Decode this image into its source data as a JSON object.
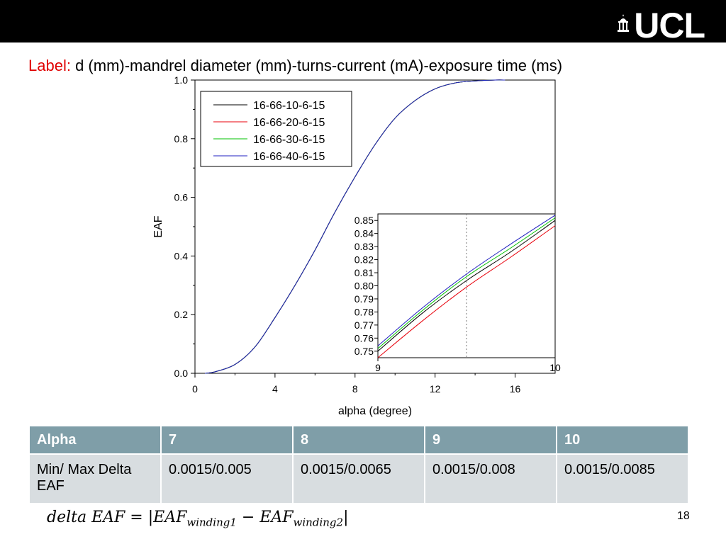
{
  "header": {
    "logo_text": "UCL"
  },
  "caption": {
    "label": "Label:",
    "text": "d (mm)-mandrel diameter (mm)-turns-current (mA)-exposure time (ms)"
  },
  "chart_data": [
    {
      "type": "line",
      "xlabel": "alpha (degree)",
      "ylabel": "EAF",
      "xlim": [
        0,
        18
      ],
      "ylim": [
        0,
        1
      ],
      "xticks": [
        0,
        4,
        8,
        12,
        16
      ],
      "yticks": [
        0.0,
        0.2,
        0.4,
        0.6,
        0.8,
        1.0
      ],
      "ytick_labels": [
        "0.0",
        "0.2",
        "0.4",
        "0.6",
        "0.8",
        "1.0"
      ],
      "legend_position": "top-left",
      "grid": false,
      "x": [
        0.5,
        1,
        2,
        3,
        4,
        5,
        6,
        7,
        8,
        9,
        10,
        11,
        12,
        13,
        14,
        15,
        15.5
      ],
      "series": [
        {
          "name": "16-66-10-6-15",
          "color": "#000000",
          "values": [
            0.0,
            0.005,
            0.03,
            0.09,
            0.19,
            0.3,
            0.42,
            0.55,
            0.67,
            0.78,
            0.87,
            0.93,
            0.97,
            0.99,
            0.997,
            1.0,
            1.0
          ]
        },
        {
          "name": "16-66-20-6-15",
          "color": "#e8000b",
          "values": [
            0.0,
            0.005,
            0.03,
            0.09,
            0.19,
            0.3,
            0.42,
            0.55,
            0.67,
            0.78,
            0.87,
            0.93,
            0.97,
            0.99,
            0.997,
            1.0,
            1.0
          ]
        },
        {
          "name": "16-66-30-6-15",
          "color": "#00c000",
          "values": [
            0.0,
            0.005,
            0.03,
            0.09,
            0.19,
            0.3,
            0.42,
            0.55,
            0.67,
            0.78,
            0.87,
            0.93,
            0.97,
            0.99,
            0.997,
            1.0,
            1.0
          ]
        },
        {
          "name": "16-66-40-6-15",
          "color": "#2020c0",
          "values": [
            0.0,
            0.005,
            0.03,
            0.09,
            0.19,
            0.3,
            0.42,
            0.55,
            0.67,
            0.78,
            0.87,
            0.93,
            0.97,
            0.99,
            0.997,
            1.0,
            1.0
          ]
        }
      ]
    },
    {
      "type": "line",
      "xlim": [
        9,
        10
      ],
      "ylim": [
        0.745,
        0.855
      ],
      "xticks": [
        9,
        10
      ],
      "yticks": [
        0.75,
        0.76,
        0.77,
        0.78,
        0.79,
        0.8,
        0.81,
        0.82,
        0.83,
        0.84,
        0.85
      ],
      "ytick_labels": [
        "0.75",
        "0.76",
        "0.77",
        "0.78",
        "0.79",
        "0.80",
        "0.81",
        "0.82",
        "0.83",
        "0.84",
        "0.85"
      ],
      "reference_line_x": 9.5,
      "x": [
        9,
        9.25,
        9.5,
        9.75,
        10
      ],
      "series": [
        {
          "name": "16-66-10-6-15",
          "color": "#000000",
          "values": [
            0.75,
            0.779,
            0.804,
            0.826,
            0.85
          ]
        },
        {
          "name": "16-66-20-6-15",
          "color": "#e8000b",
          "values": [
            0.745,
            0.773,
            0.799,
            0.822,
            0.846
          ]
        },
        {
          "name": "16-66-30-6-15",
          "color": "#00c000",
          "values": [
            0.752,
            0.781,
            0.807,
            0.829,
            0.852
          ]
        },
        {
          "name": "16-66-40-6-15",
          "color": "#2020c0",
          "values": [
            0.754,
            0.783,
            0.809,
            0.832,
            0.854
          ]
        }
      ]
    }
  ],
  "table": {
    "headers": [
      "Alpha",
      "7",
      "8",
      "9",
      "10"
    ],
    "row": [
      "Min/ Max Delta EAF",
      "0.0015/0.005",
      "0.0015/0.0065",
      "0.0015/0.008",
      "0.0015/0.0085"
    ]
  },
  "formula": {
    "lhs": "delta EAF =",
    "term1": "EAF",
    "sub1": "winding1",
    "minus": "−",
    "term2": "EAF",
    "sub2": "winding2"
  },
  "page_number": "18"
}
